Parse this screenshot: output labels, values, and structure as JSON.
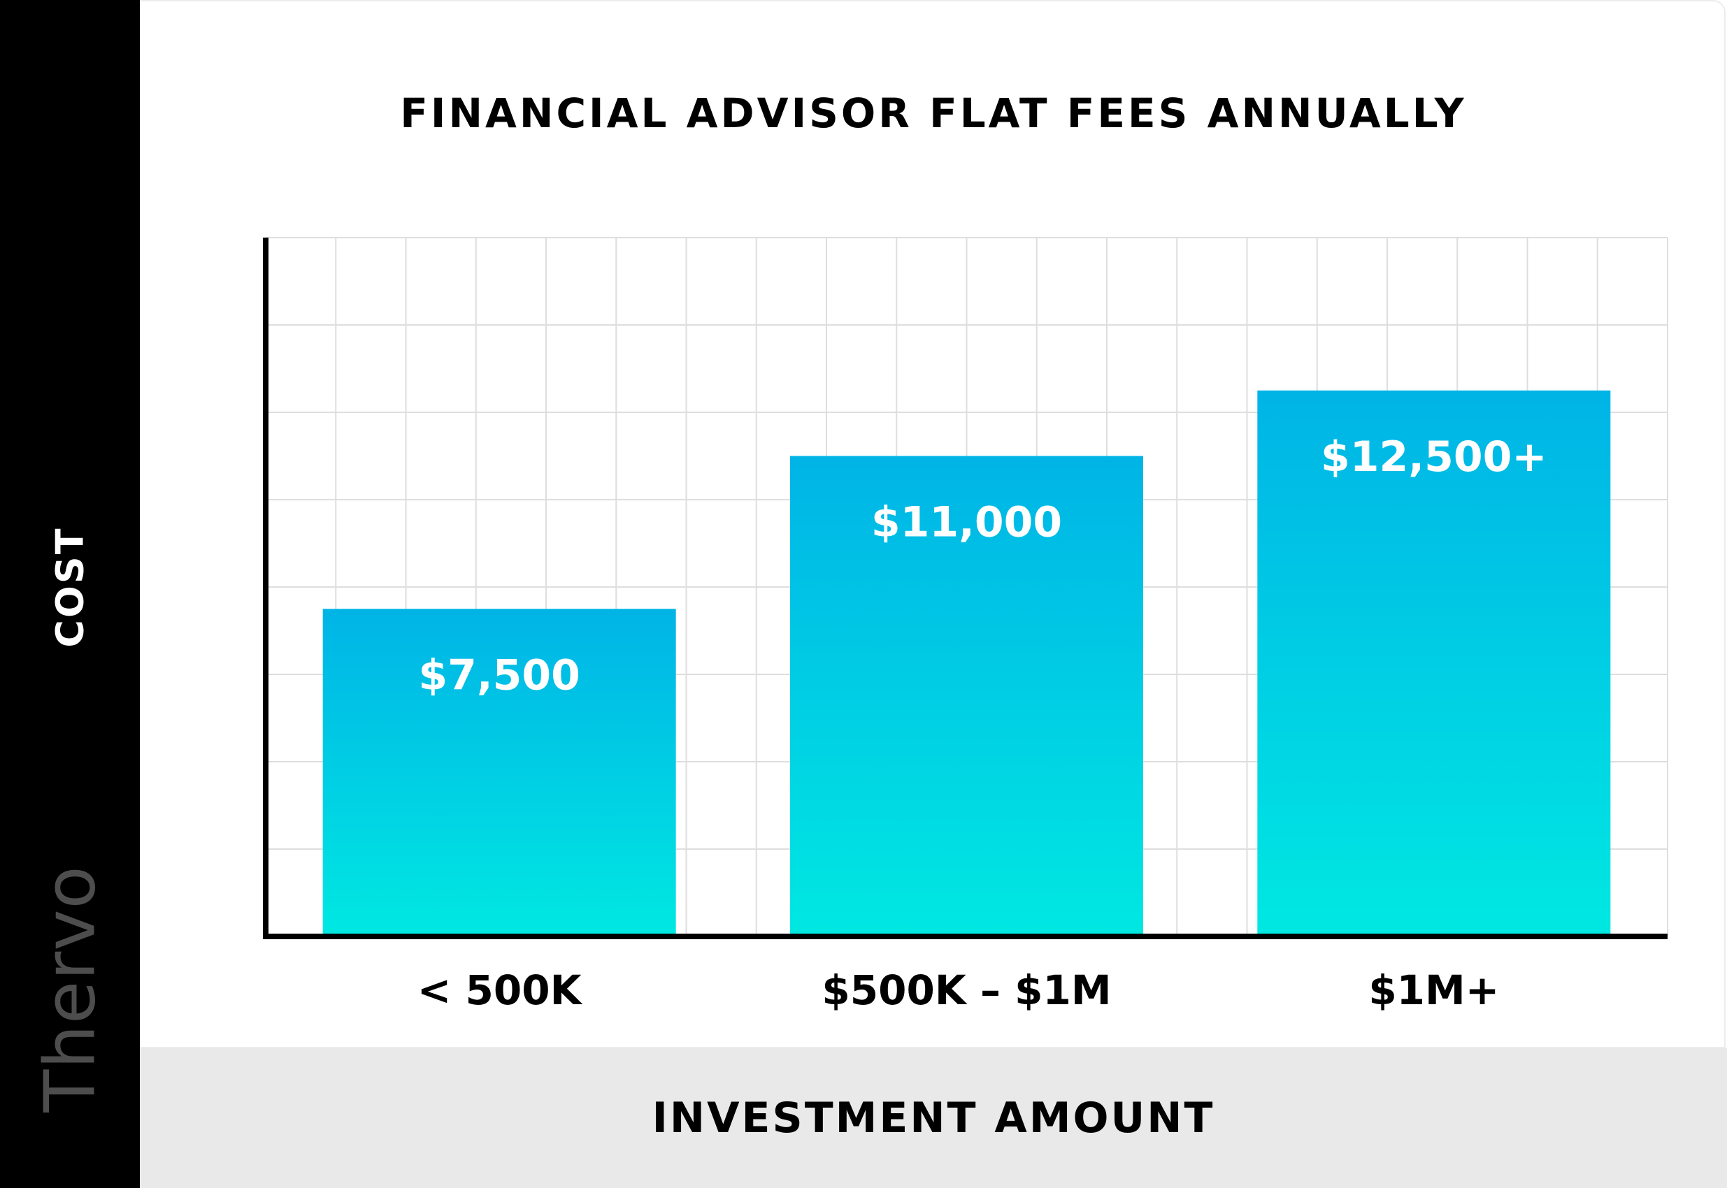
{
  "brand": "Thervo",
  "chart_data": {
    "type": "bar",
    "title": "FINANCIAL ADVISOR FLAT FEES ANNUALLY",
    "xlabel": "INVESTMENT AMOUNT",
    "ylabel": "COST",
    "categories": [
      "< 500K",
      "$500K – $1M",
      "$1M+"
    ],
    "values": [
      7500,
      11000,
      12500
    ],
    "data_labels": [
      "$7,500",
      "$11,000",
      "$12,500+"
    ],
    "ylim": [
      0,
      16000
    ],
    "grid": true,
    "bar_gradient": [
      "#00b4e6",
      "#00e8e2"
    ]
  }
}
